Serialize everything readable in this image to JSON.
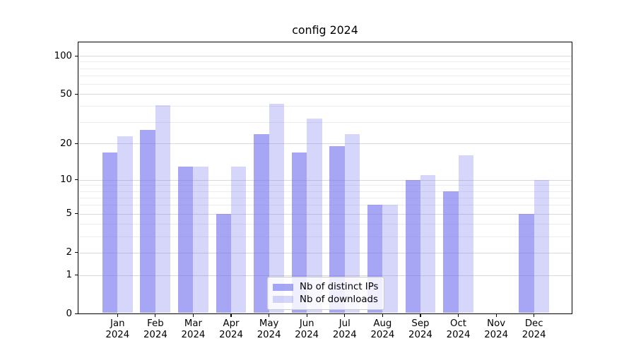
{
  "title": "config 2024",
  "chart_data": {
    "type": "bar",
    "title": "config 2024",
    "x_months": [
      "Jan",
      "Feb",
      "Mar",
      "Apr",
      "May",
      "Jun",
      "Jul",
      "Aug",
      "Sep",
      "Oct",
      "Nov",
      "Dec"
    ],
    "x_year": "2024",
    "categories": [
      "Jan 2024",
      "Feb 2024",
      "Mar 2024",
      "Apr 2024",
      "May 2024",
      "Jun 2024",
      "Jul 2024",
      "Aug 2024",
      "Sep 2024",
      "Oct 2024",
      "Nov 2024",
      "Dec 2024"
    ],
    "series": [
      {
        "name": "Nb of distinct IPs",
        "key": "distinct-ips",
        "values": [
          17,
          26,
          13,
          5,
          24,
          17,
          19,
          6,
          10,
          8,
          0,
          5
        ],
        "color": "rgba(119,119,238,0.65)"
      },
      {
        "name": "Nb of downloads",
        "key": "downloads",
        "values": [
          23,
          41,
          13,
          13,
          42,
          32,
          24,
          6,
          11,
          16,
          0,
          10
        ],
        "color": "rgba(119,119,238,0.30)"
      }
    ],
    "y_axis": {
      "scale": "log10(value+1)",
      "major_ticks": [
        100,
        50,
        20,
        10,
        5,
        2,
        1,
        0
      ],
      "minor_gridlines": [
        3,
        4,
        6,
        7,
        8,
        9,
        30,
        40,
        60,
        70,
        80,
        90
      ],
      "ylim": [
        0,
        130
      ]
    },
    "grid": true,
    "legend": {
      "position": "bottom-center",
      "entries": [
        "Nb of distinct IPs",
        "Nb of downloads"
      ]
    },
    "colors": {
      "bar_dark": "rgba(119,119,238,0.65)",
      "bar_light": "rgba(119,119,238,0.30)",
      "grid_major": "#d8d8d8",
      "grid_minor": "#ececec",
      "axis": "#000000",
      "legend_border": "#cbcbcb",
      "background": "#ffffff"
    }
  }
}
